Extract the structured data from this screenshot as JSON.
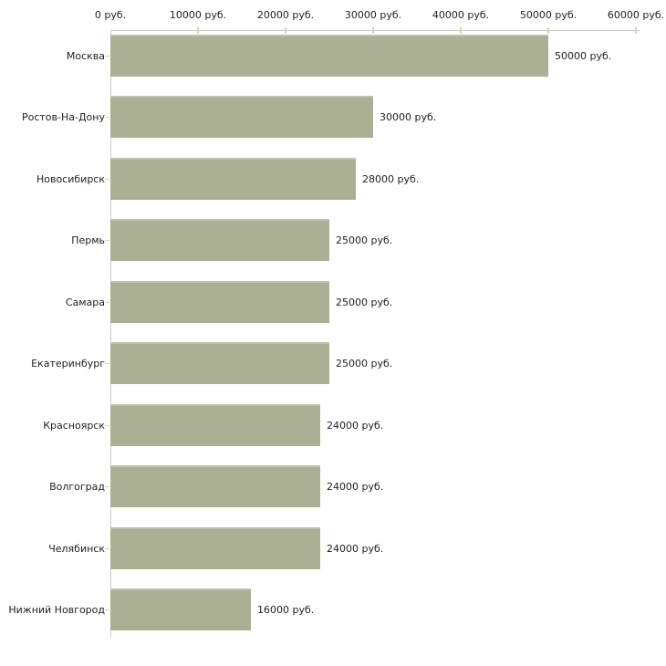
{
  "chart_data": {
    "type": "bar",
    "orientation": "horizontal",
    "title": "",
    "xlabel": "",
    "ylabel": "",
    "axis_position": "top",
    "xlim": [
      0,
      60000
    ],
    "x_tick_step": 10000,
    "x_tick_labels": [
      "0 руб.",
      "10000 руб.",
      "20000 руб.",
      "30000 руб.",
      "40000 руб.",
      "50000 руб.",
      "60000 руб."
    ],
    "categories": [
      "Москва",
      "Ростов-На-Дону",
      "Новосибирск",
      "Пермь",
      "Самара",
      "Екатеринбург",
      "Красноярск",
      "Волгоград",
      "Челябинск",
      "Нижний Новгород"
    ],
    "values": [
      50000,
      30000,
      28000,
      25000,
      25000,
      25000,
      24000,
      24000,
      24000,
      16000
    ],
    "value_labels": [
      "50000 руб.",
      "30000 руб.",
      "28000 руб.",
      "25000 руб.",
      "25000 руб.",
      "25000 руб.",
      "24000 руб.",
      "24000 руб.",
      "24000 руб.",
      "16000 руб."
    ],
    "unit": "руб.",
    "grid": false,
    "legend": null,
    "colors": {
      "bar": "#abaf94",
      "bar_highlight": "#bdc1ab",
      "axis_line": "#c6c6c6",
      "tick": "#d6d6ad",
      "text": "#1f1f1f",
      "background": "#ffffff"
    }
  }
}
